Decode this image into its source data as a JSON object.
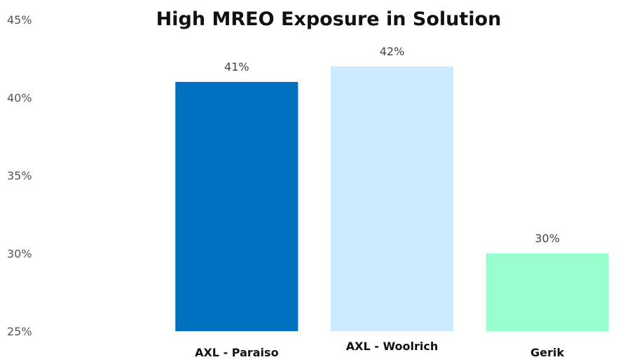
{
  "chart_data": {
    "type": "bar",
    "title": "High MREO Exposure in Solution",
    "xlabel": "",
    "ylabel": "",
    "categories": [
      "AXL - Paraiso",
      "AXL - Woolrich",
      "Gerik"
    ],
    "values": [
      0.41,
      0.42,
      0.3
    ],
    "data_labels": [
      "41%",
      "42%",
      "30%"
    ],
    "colors": [
      "#0070C0",
      "#CCEBFF",
      "#99FFCC"
    ],
    "ylim": [
      0.25,
      0.45
    ],
    "y_ticks": [
      0.25,
      0.3,
      0.35,
      0.4,
      0.45
    ],
    "y_tick_labels": [
      "25%",
      "30%",
      "35%",
      "40%",
      "45%"
    ],
    "grid": false,
    "legend": "none"
  }
}
